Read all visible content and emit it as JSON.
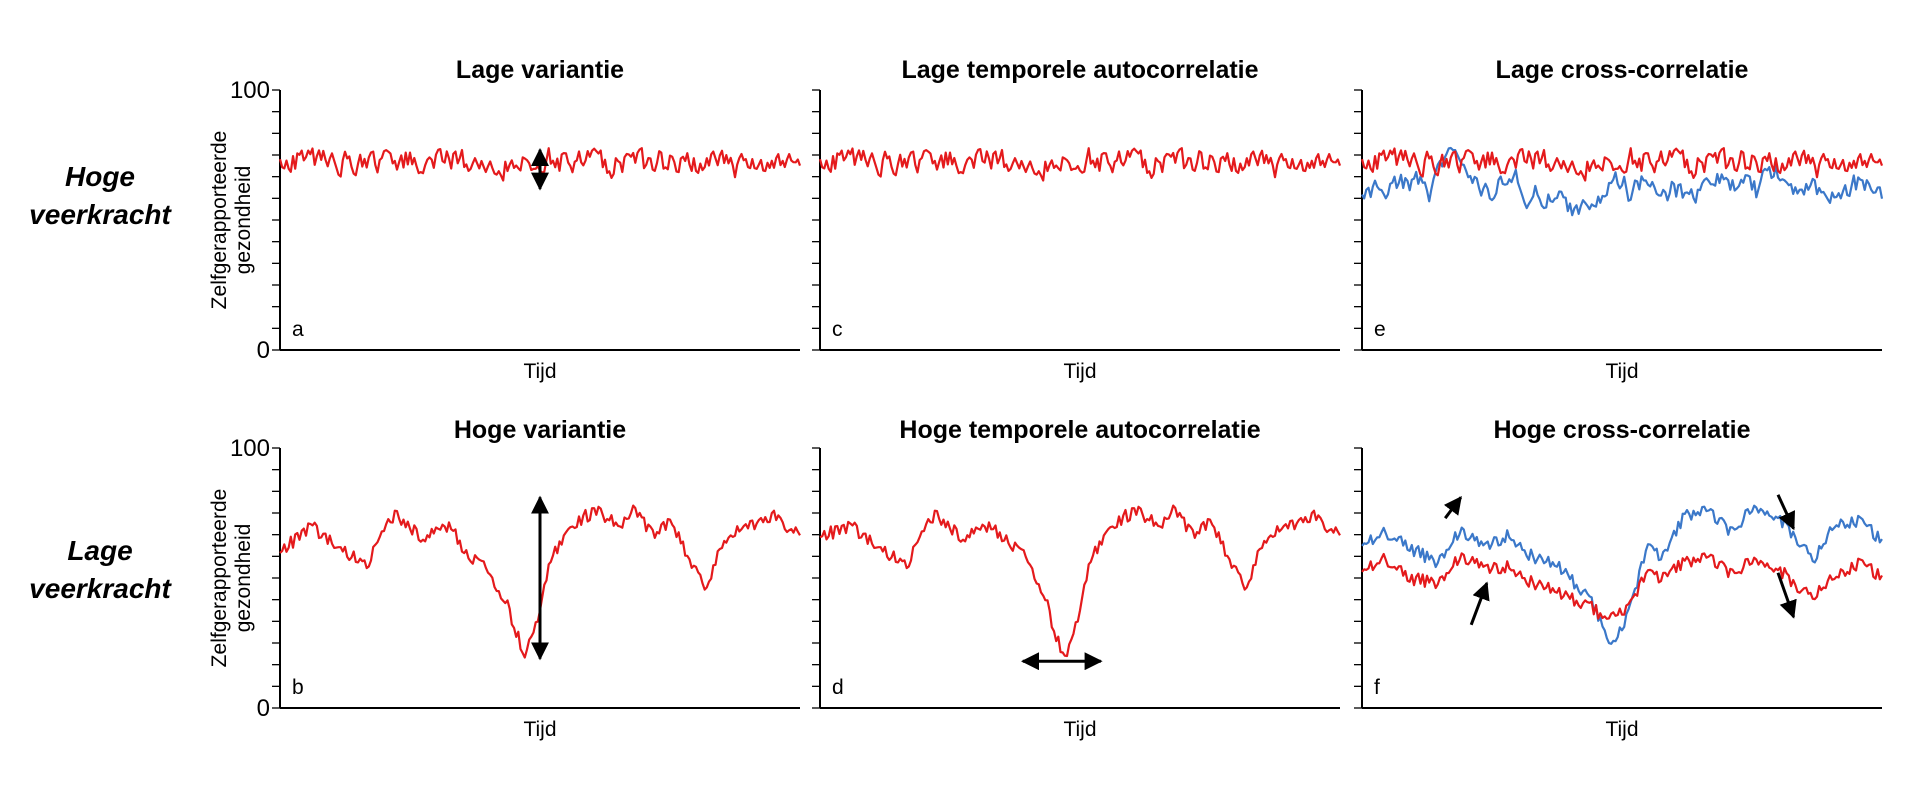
{
  "row_labels": {
    "top": [
      "Hoge",
      "veerkracht"
    ],
    "bottom": [
      "Lage",
      "veerkracht"
    ]
  },
  "colors": {
    "red": "#e41a1c",
    "blue": "#3b78c9",
    "axis": "#000000"
  },
  "chart_data": [
    {
      "panel": "a",
      "type": "line",
      "title": "Lage variantie",
      "xlabel": "Tijd",
      "ylabel": "Zelfgerapporteerde gezondheid",
      "yticks": [
        "0",
        "100"
      ],
      "ylim": [
        0,
        100
      ],
      "x": [
        0,
        100
      ],
      "series": [
        {
          "color": "red",
          "style": "noisy",
          "mean": 72,
          "amp": 4.5,
          "seed": 11
        }
      ],
      "annotations": [
        {
          "type": "double-arrow-vertical",
          "x": 50,
          "y1": 62,
          "y2": 77
        }
      ]
    },
    {
      "panel": "c",
      "type": "line",
      "title": "Lage temporele autocorrelatie",
      "xlabel": "Tijd",
      "ylabel": "",
      "ylim": [
        0,
        100
      ],
      "x": [
        0,
        100
      ],
      "series": [
        {
          "color": "red",
          "style": "noisy",
          "mean": 72,
          "amp": 4.5,
          "seed": 11
        }
      ],
      "annotations": []
    },
    {
      "panel": "e",
      "type": "line",
      "title": "Lage cross-correlatie",
      "xlabel": "Tijd",
      "ylabel": "",
      "ylim": [
        0,
        100
      ],
      "x": [
        0,
        100
      ],
      "series": [
        {
          "color": "blue",
          "style": "wander",
          "mean": 62,
          "amp": 9,
          "seed": 23
        },
        {
          "color": "red",
          "style": "noisy",
          "mean": 72,
          "amp": 4.5,
          "seed": 11
        }
      ],
      "annotations": []
    },
    {
      "panel": "b",
      "type": "line",
      "title": "Hoge variantie",
      "xlabel": "Tijd",
      "ylabel": "Zelfgerapporteerde gezondheid",
      "yticks": [
        "0",
        "100"
      ],
      "ylim": [
        0,
        100
      ],
      "x": [
        0,
        100
      ],
      "series": [
        {
          "color": "red",
          "style": "profile",
          "seed": 5,
          "profile": [
            [
              0,
              60
            ],
            [
              6,
              70
            ],
            [
              12,
              60
            ],
            [
              17,
              56
            ],
            [
              22,
              75
            ],
            [
              27,
              66
            ],
            [
              33,
              70
            ],
            [
              36,
              58
            ],
            [
              40,
              54
            ],
            [
              44,
              38
            ],
            [
              47,
              20
            ],
            [
              49,
              30
            ],
            [
              52,
              58
            ],
            [
              57,
              72
            ],
            [
              61,
              76
            ],
            [
              65,
              70
            ],
            [
              68,
              76
            ],
            [
              72,
              66
            ],
            [
              75,
              72
            ],
            [
              78,
              60
            ],
            [
              82,
              45
            ],
            [
              85,
              64
            ],
            [
              90,
              70
            ],
            [
              95,
              74
            ],
            [
              100,
              66
            ]
          ]
        }
      ],
      "annotations": [
        {
          "type": "double-arrow-vertical",
          "x": 50,
          "y1": 19,
          "y2": 81
        }
      ]
    },
    {
      "panel": "d",
      "type": "line",
      "title": "Hoge temporele autocorrelatie",
      "xlabel": "Tijd",
      "ylabel": "",
      "ylim": [
        0,
        100
      ],
      "x": [
        0,
        100
      ],
      "series": [
        {
          "color": "red",
          "style": "profile",
          "seed": 5,
          "profile": [
            [
              0,
              66
            ],
            [
              6,
              70
            ],
            [
              12,
              60
            ],
            [
              17,
              56
            ],
            [
              22,
              75
            ],
            [
              27,
              66
            ],
            [
              33,
              70
            ],
            [
              37,
              62
            ],
            [
              40,
              58
            ],
            [
              43,
              44
            ],
            [
              46,
              24
            ],
            [
              47.5,
              20
            ],
            [
              49,
              30
            ],
            [
              52,
              58
            ],
            [
              57,
              72
            ],
            [
              61,
              76
            ],
            [
              65,
              70
            ],
            [
              68,
              76
            ],
            [
              72,
              66
            ],
            [
              75,
              72
            ],
            [
              78,
              60
            ],
            [
              82,
              45
            ],
            [
              85,
              64
            ],
            [
              90,
              70
            ],
            [
              95,
              74
            ],
            [
              100,
              66
            ]
          ]
        }
      ],
      "annotations": [
        {
          "type": "double-arrow-horizontal",
          "y": 18,
          "x1": 39,
          "x2": 54
        }
      ]
    },
    {
      "panel": "f",
      "type": "line",
      "title": "Hoge cross-correlatie",
      "xlabel": "Tijd",
      "ylabel": "",
      "ylim": [
        0,
        100
      ],
      "x": [
        0,
        100
      ],
      "series": [
        {
          "color": "blue",
          "style": "profile",
          "seed": 9,
          "profile": [
            [
              0,
              62
            ],
            [
              4,
              68
            ],
            [
              9,
              62
            ],
            [
              14,
              56
            ],
            [
              19,
              68
            ],
            [
              23,
              62
            ],
            [
              28,
              66
            ],
            [
              33,
              58
            ],
            [
              38,
              54
            ],
            [
              43,
              44
            ],
            [
              46,
              34
            ],
            [
              48,
              24
            ],
            [
              50,
              30
            ],
            [
              55,
              62
            ],
            [
              58,
              58
            ],
            [
              62,
              74
            ],
            [
              66,
              76
            ],
            [
              71,
              68
            ],
            [
              75,
              76
            ],
            [
              80,
              74
            ],
            [
              84,
              64
            ],
            [
              87,
              58
            ],
            [
              91,
              70
            ],
            [
              96,
              72
            ],
            [
              100,
              64
            ]
          ]
        },
        {
          "color": "red",
          "style": "profile",
          "seed": 9,
          "profile": [
            [
              0,
              52
            ],
            [
              4,
              58
            ],
            [
              9,
              50
            ],
            [
              14,
              48
            ],
            [
              19,
              58
            ],
            [
              23,
              54
            ],
            [
              28,
              54
            ],
            [
              33,
              48
            ],
            [
              38,
              44
            ],
            [
              43,
              40
            ],
            [
              46,
              36
            ],
            [
              48,
              36
            ],
            [
              50,
              36
            ],
            [
              55,
              52
            ],
            [
              58,
              50
            ],
            [
              62,
              56
            ],
            [
              66,
              58
            ],
            [
              71,
              52
            ],
            [
              75,
              56
            ],
            [
              80,
              54
            ],
            [
              84,
              46
            ],
            [
              87,
              44
            ],
            [
              91,
              50
            ],
            [
              96,
              56
            ],
            [
              100,
              50
            ]
          ]
        }
      ],
      "annotations": [
        {
          "type": "arrow",
          "x1": 16,
          "y1": 73,
          "x2": 19,
          "y2": 81
        },
        {
          "type": "arrow",
          "x1": 21,
          "y1": 32,
          "x2": 24,
          "y2": 48
        },
        {
          "type": "arrow",
          "x1": 80,
          "y1": 82,
          "x2": 83,
          "y2": 69
        },
        {
          "type": "arrow",
          "x1": 80,
          "y1": 52,
          "x2": 83,
          "y2": 35
        }
      ]
    }
  ],
  "panel_letters": [
    "a",
    "c",
    "e",
    "b",
    "d",
    "f"
  ]
}
